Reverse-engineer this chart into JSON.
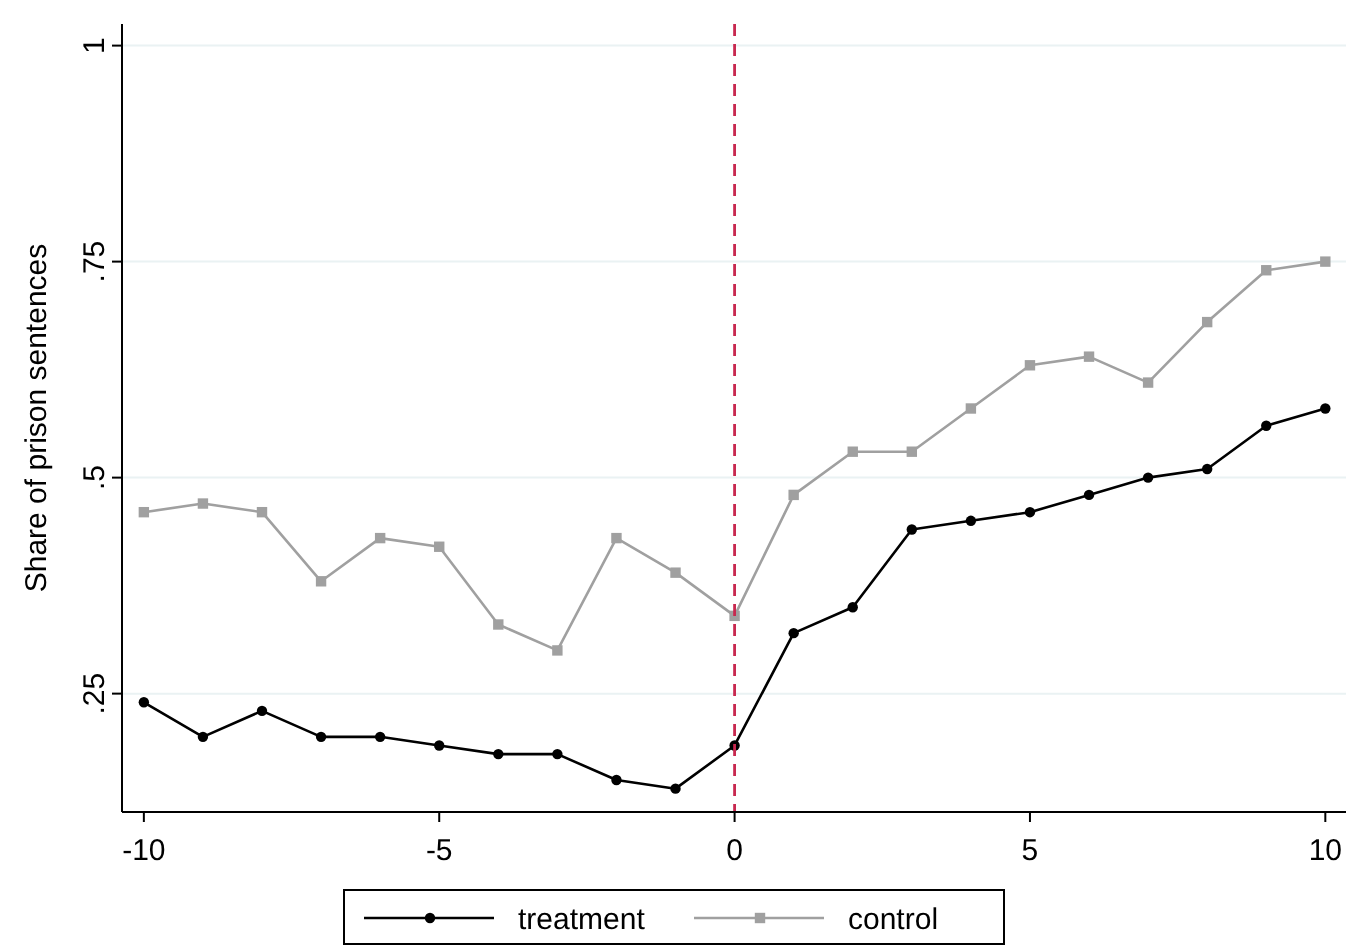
{
  "chart_data": {
    "type": "line",
    "ylabel": "Share of prison sentences",
    "x": [
      -10,
      -9,
      -8,
      -7,
      -6,
      -5,
      -4,
      -3,
      -2,
      -1,
      0,
      1,
      2,
      3,
      4,
      5,
      6,
      7,
      8,
      9,
      10
    ],
    "series": [
      {
        "name": "treatment",
        "color": "#000000",
        "marker": "circle",
        "values": [
          0.24,
          0.2,
          0.23,
          0.2,
          0.2,
          0.19,
          0.18,
          0.18,
          0.15,
          0.14,
          0.19,
          0.32,
          0.35,
          0.44,
          0.45,
          0.46,
          0.48,
          0.5,
          0.51,
          0.56,
          0.58
        ]
      },
      {
        "name": "control",
        "color": "#a0a0a0",
        "marker": "square",
        "values": [
          0.46,
          0.47,
          0.46,
          0.38,
          0.43,
          0.42,
          0.33,
          0.3,
          0.43,
          0.39,
          0.34,
          0.48,
          0.53,
          0.53,
          0.58,
          0.63,
          0.64,
          0.61,
          0.68,
          0.74,
          0.75
        ]
      }
    ],
    "xlim": [
      -10.37,
      10.35
    ],
    "xticks": [
      -10,
      -5,
      0,
      5,
      10
    ],
    "ylim": [
      0.113,
      1.025
    ],
    "yticks": [
      {
        "value": 0.25,
        "label": ".25"
      },
      {
        "value": 0.5,
        "label": ".5"
      },
      {
        "value": 0.75,
        "label": ".75"
      },
      1
    ],
    "grid": "y",
    "legend": "bottom",
    "ref_lines": [
      {
        "axis": "x",
        "value": 0,
        "color": "#c8284f",
        "line_style": "dashed"
      }
    ]
  }
}
